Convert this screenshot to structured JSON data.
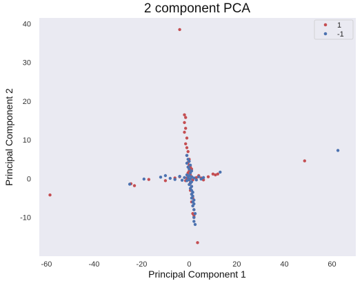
{
  "chart_data": {
    "type": "scatter",
    "title": "2 component PCA",
    "xlabel": "Principal Component 1",
    "ylabel": "Principal Component 2",
    "xlim": [
      -63,
      70
    ],
    "ylim": [
      -20,
      41.5
    ],
    "xticks": [
      -60,
      -40,
      -20,
      0,
      20,
      40,
      60
    ],
    "yticks": [
      -10,
      0,
      10,
      20,
      30,
      40
    ],
    "grid": false,
    "legend_position": "top-right",
    "series": [
      {
        "name": "1",
        "color": "#c44e52",
        "points": [
          [
            -4,
            38.5
          ],
          [
            -2,
            16.5
          ],
          [
            -1.5,
            15.8
          ],
          [
            -2,
            14.5
          ],
          [
            -1.5,
            13
          ],
          [
            -2,
            12
          ],
          [
            -1,
            10.5
          ],
          [
            -1.5,
            9
          ],
          [
            -1,
            8
          ],
          [
            -0.5,
            7
          ],
          [
            -1,
            6
          ],
          [
            0,
            5
          ],
          [
            -0.5,
            4.2
          ],
          [
            0,
            3.5
          ],
          [
            0.5,
            3
          ],
          [
            1,
            2.5
          ],
          [
            0,
            2
          ],
          [
            -0.5,
            1.5
          ],
          [
            0.5,
            1
          ],
          [
            1,
            0.5
          ],
          [
            -1,
            0.2
          ],
          [
            0,
            0
          ],
          [
            1.5,
            -0.3
          ],
          [
            -1.5,
            -0.5
          ],
          [
            0.5,
            -1
          ],
          [
            1,
            -2
          ],
          [
            0.5,
            -3
          ],
          [
            1,
            -4
          ],
          [
            1.5,
            -5
          ],
          [
            1,
            -6
          ],
          [
            1.5,
            -7
          ],
          [
            2,
            -8
          ],
          [
            1.5,
            -9
          ],
          [
            2,
            -9.5
          ],
          [
            2,
            -10
          ],
          [
            3.5,
            -16.5
          ],
          [
            -58.5,
            -4.2
          ],
          [
            -24.5,
            -1.3
          ],
          [
            -23,
            -1.8
          ],
          [
            -17,
            -0.2
          ],
          [
            -10,
            -0.5
          ],
          [
            -6,
            0.2
          ],
          [
            -4,
            0.5
          ],
          [
            3,
            0.3
          ],
          [
            4,
            0.8
          ],
          [
            5,
            0.2
          ],
          [
            6,
            -0.3
          ],
          [
            8,
            0.5
          ],
          [
            10,
            1.2
          ],
          [
            11,
            1
          ],
          [
            12,
            1.2
          ],
          [
            48.5,
            4.6
          ]
        ]
      },
      {
        "name": "-1",
        "color": "#4c72b0",
        "points": [
          [
            -1,
            6
          ],
          [
            -0.5,
            5
          ],
          [
            0,
            4.5
          ],
          [
            -1,
            4
          ],
          [
            0.5,
            3.5
          ],
          [
            -0.5,
            3
          ],
          [
            0,
            2.5
          ],
          [
            1,
            2
          ],
          [
            0.5,
            1.5
          ],
          [
            -1,
            1
          ],
          [
            0,
            0.8
          ],
          [
            1,
            0.5
          ],
          [
            -0.5,
            0.3
          ],
          [
            0.5,
            0
          ],
          [
            0,
            -0.3
          ],
          [
            -1,
            -0.5
          ],
          [
            1,
            -0.8
          ],
          [
            0.5,
            -1.2
          ],
          [
            0,
            -1.5
          ],
          [
            1,
            -2
          ],
          [
            0.5,
            -2.5
          ],
          [
            1,
            -3
          ],
          [
            1.5,
            -3.5
          ],
          [
            1,
            -4
          ],
          [
            1.5,
            -4.5
          ],
          [
            1,
            -5
          ],
          [
            2,
            -5.5
          ],
          [
            1.5,
            -6
          ],
          [
            2,
            -6.5
          ],
          [
            1.5,
            -7
          ],
          [
            2,
            -8
          ],
          [
            2.5,
            -9
          ],
          [
            2,
            -10
          ],
          [
            2,
            -11
          ],
          [
            2.5,
            -11.8
          ],
          [
            -25,
            -1.4
          ],
          [
            -19,
            -0.1
          ],
          [
            -12,
            0.4
          ],
          [
            -10,
            0.8
          ],
          [
            -8,
            0.1
          ],
          [
            -6,
            -0.2
          ],
          [
            -4,
            0.6
          ],
          [
            -3,
            -0.4
          ],
          [
            -2,
            0.3
          ],
          [
            2,
            0.2
          ],
          [
            3,
            -0.3
          ],
          [
            4,
            0.5
          ],
          [
            5,
            -0.1
          ],
          [
            6,
            0.3
          ],
          [
            13,
            1.7
          ],
          [
            62.5,
            7.3
          ]
        ]
      }
    ]
  }
}
